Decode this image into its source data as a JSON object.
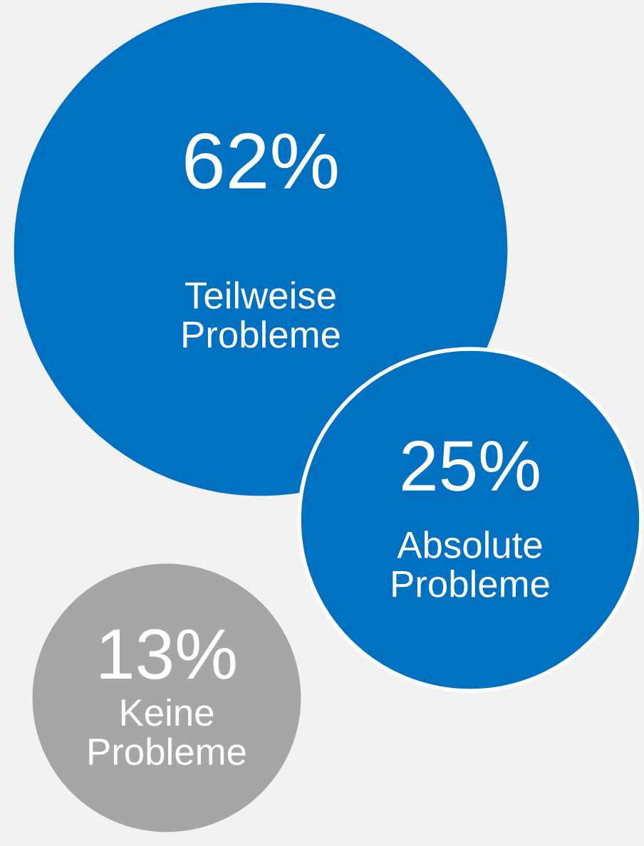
{
  "chart_data": {
    "type": "other",
    "categories": [
      "Teilweise Probleme",
      "Absolute Probleme",
      "Keine Probleme"
    ],
    "values": [
      62,
      25,
      13
    ],
    "value_labels": [
      "62%",
      "25%",
      "13%"
    ],
    "colors": [
      "#0070c0",
      "#0070c0",
      "#a6a6a6"
    ]
  }
}
